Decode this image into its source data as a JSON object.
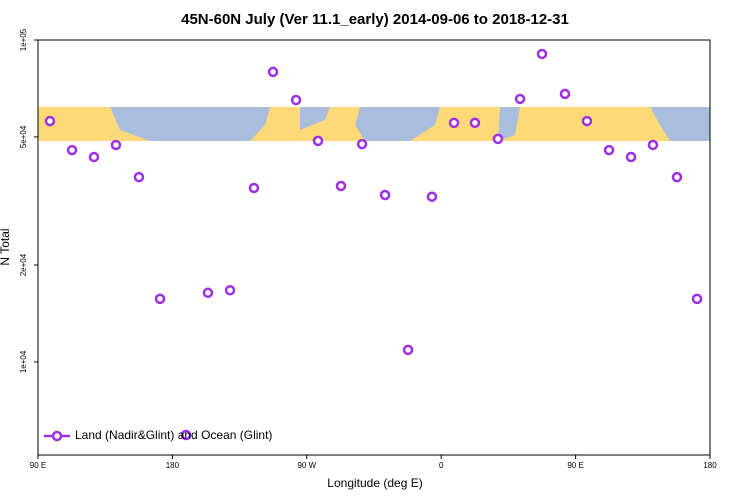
{
  "chart_data": {
    "type": "scatter",
    "title": "45N-60N July (Ver 11.1_early)   2014-09-06 to 2018-12-31",
    "xlabel": "Longitude (deg E)",
    "ylabel": "N Total",
    "log_y": true,
    "legend": "lower left",
    "xlim": [
      90,
      540
    ],
    "xticks": [
      {
        "value": 90,
        "label": "90 E"
      },
      180,
      {
        "value": 270,
        "label": "90 W"
      },
      {
        "value": 360,
        "label": "0"
      },
      {
        "value": 450,
        "label": "90 E"
      },
      {
        "value": 540,
        "label": "180"
      }
    ],
    "ylim": [
      5140,
      100000
    ],
    "yticks": [
      {
        "value": 100000,
        "label": "1e+05"
      },
      {
        "value": 50000,
        "label": "5e+04"
      },
      {
        "value": 20000,
        "label": "2e+04"
      },
      {
        "value": 10000,
        "label": "1e+04"
      }
    ],
    "series": [
      {
        "name": "Land (Nadir&Glint) and Ocean (Glint)",
        "color": "#9b30e8",
        "x": [
          98.0,
          112.8,
          127.5,
          142.2,
          157.6,
          171.7,
          189.1,
          203.8,
          218.6,
          234.6,
          247.4,
          262.8,
          277.5,
          292.9,
          307.0,
          322.4,
          337.8,
          353.8,
          368.6,
          382.6,
          398.0,
          412.8,
          427.5,
          442.9,
          457.6,
          472.4,
          487.1,
          501.8,
          517.9,
          531.3
        ],
        "values": [
          56000,
          45500,
          43300,
          47200,
          37500,
          15700,
          5930,
          16400,
          16700,
          34700,
          79600,
          65100,
          48600,
          35200,
          47500,
          33000,
          10900,
          32600,
          55300,
          55300,
          49300,
          65600,
          90500,
          68000,
          56000,
          45500,
          43300,
          47200,
          37500,
          15700
        ]
      }
    ]
  }
}
